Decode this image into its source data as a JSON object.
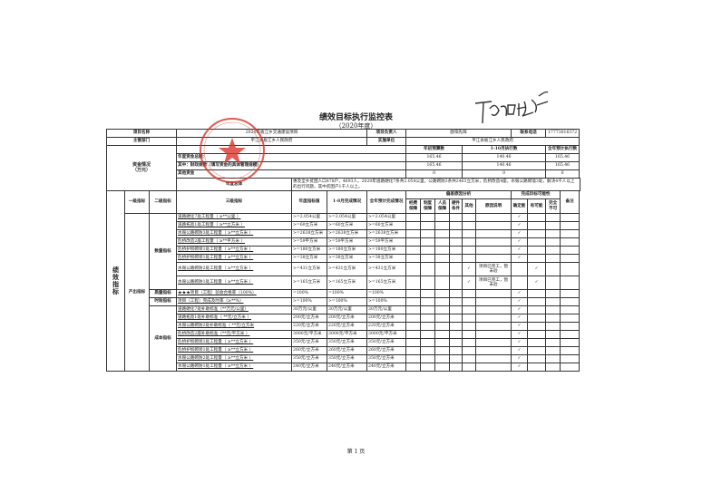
{
  "title": "绩效目标执行监控表",
  "subtitle": "（2020年度）",
  "footer": "第 1 页",
  "header": {
    "project_name_label": "项目名称",
    "project_name": "2020年板江乡交通建设项目",
    "leader_label": "项目负责人",
    "leader": "欧阳先辉",
    "phone_label": "联系电话",
    "phone": "17773016372",
    "dept_label": "主管部门",
    "dept": "平江县板江乡人民政府",
    "impl_label": "实施单位",
    "impl": "平江县板江乡人民政府"
  },
  "funds": {
    "label": "资金情况\n（万元）",
    "col_budget": "年初预算数",
    "col_exec": "1-10月执行数",
    "col_forecast": "全年预计执行数",
    "rows": [
      {
        "label": "年度资金总额：",
        "budget": "165.46",
        "exec": "140.46",
        "forecast": "165.46"
      },
      {
        "label": "其中：财政拨款（填写资金的具体管理规模）",
        "budget": "165.46",
        "exec": "140.46",
        "forecast": "165.46"
      },
      {
        "label": "其他资金",
        "budget": "0",
        "exec": "0",
        "forecast": "0"
      }
    ]
  },
  "overall": {
    "label": "年度总体",
    "text": "惠及全乡贫困人口878户，4693人。2020年道路硬化7条共2.054公里，公路砌防3条共2463立方米，危桥改造4座，水毁公路砌墙3处，解决4千人以上的出行问题，其中贫困户1千人以上。"
  },
  "indicators": {
    "section_label": "绩效指标",
    "headers": {
      "l1": "一级指标",
      "l2": "二级指标",
      "l3": "三级指标",
      "target": "年度指标值",
      "done": "1-8月完成情况",
      "forecast": "全年预计完成情况",
      "deviation": "偏差原因分析",
      "dev_cols": [
        "经费保障",
        "制度保障",
        "人员保障",
        "硬件条件",
        "其他",
        "原因说明"
      ],
      "possibility": "完成目标可能性",
      "pos_cols": [
        "确定能",
        "有可能",
        "完全不可"
      ],
      "note": "备注"
    },
    "l1_label": "产出指标",
    "check": "✓",
    "groups": [
      {
        "label": "数量指标",
        "rows": [
          {
            "name": "道路硬化7处工程量（ ≥**公里 ）",
            "target": ">=2.054公里",
            "done": ">=2.054公里",
            "forecast": ">=2.054公里",
            "other": "",
            "reason": "",
            "pos": 0
          },
          {
            "name": "道路拓宽1处工程量（ ≥**立方米 ）",
            "target": ">=60立方米",
            "done": ">=60立方米",
            "forecast": ">=60立方米",
            "other": "",
            "reason": "",
            "pos": 0
          },
          {
            "name": "水毁公路砌防3处工程量（ ≥**立方米 ）",
            "target": ">=2638立方米",
            "done": ">=2638立方米",
            "forecast": ">=2638立方米",
            "other": "",
            "reason": "",
            "pos": 0
          },
          {
            "name": "危桥改造2座工程量（ ≥**平方米 ）",
            "target": ">=59平方米",
            "done": ">=59平方米",
            "forecast": ">=59平方米",
            "other": "",
            "reason": "",
            "pos": 0
          },
          {
            "name": "危桥护坝砌坝1处工程量（ ≥**立方米 ）",
            "target": ">=180立方米",
            "done": ">=180立方米",
            "forecast": ">=180立方米",
            "other": "",
            "reason": "",
            "pos": 0
          },
          {
            "name": "危桥护坝砌坝1处工程量（ ≥**立方米 ）",
            "target": ">=38立方米",
            "done": ">=38立方米",
            "forecast": ">=38立方米",
            "other": "",
            "reason": "",
            "pos": 0
          },
          {
            "name": "水毁公路砌防2处工程量（ ≥**立方米 ）",
            "target": ">=431立方米",
            "done": ">=431立方米",
            "forecast": ">=431立方米",
            "other": "✓",
            "reason": "项目已完工，暂未验",
            "pos": 1
          },
          {
            "name": "水毁公路砌防1处工程量（ ≥**立方米 ）",
            "target": ">=165立方米",
            "done": ">=165立方米",
            "forecast": ">=165立方米",
            "other": "✓",
            "reason": "项目已完工，暂未验",
            "pos": 1
          }
        ]
      },
      {
        "label": "质量指标",
        "rows": [
          {
            "name": "★★★项目（工程）验收合格率（100%）",
            "target": "=100%",
            "done": "=100%",
            "forecast": "=100%",
            "other": "",
            "reason": "",
            "pos": 0
          }
        ]
      },
      {
        "label": "时效指标",
        "rows": [
          {
            "name": "项目（工程）完成及时率（≥**%）",
            "target": ">=100%",
            "done": ">=100%",
            "forecast": ">=100%",
            "other": "",
            "reason": "",
            "pos": 0
          }
        ]
      },
      {
        "label": "成本指标",
        "rows": [
          {
            "name": "道路硬化7处补助标准（**万元/公里）",
            "target": "30万元/公里",
            "done": "30万元/公里",
            "forecast": "30万元/公里",
            "other": "",
            "reason": "",
            "pos": 0
          },
          {
            "name": "道路拓宽1处补助标准（ **元/立方米 ）",
            "target": "200元/立方米",
            "done": "200元/立方米",
            "forecast": "200元/立方米",
            "other": "",
            "reason": "",
            "pos": 0
          },
          {
            "name": "水毁公路砌防2处补助标准（ **元/立方米",
            "target": "220元/立方米",
            "done": "220元/立方米",
            "forecast": "220元/立方米",
            "other": "",
            "reason": "",
            "pos": 0
          },
          {
            "name": "危桥改造2座补助标准（**元/平方米 ）",
            "target": "3000元/平方米",
            "done": "3000元/平方米",
            "forecast": "3000元/平方米",
            "other": "",
            "reason": "",
            "pos": 0
          },
          {
            "name": "危桥护坝砌坝1处工程量（ ≥**立方米 ）",
            "target": "350元/立方米",
            "done": "350元/立方米",
            "forecast": "350元/立方米",
            "other": "",
            "reason": "",
            "pos": 0
          },
          {
            "name": "危桥护坝砌坝1处工程量（ ≥**立方米 ）",
            "target": "260元/立方米",
            "done": "260元/立方米",
            "forecast": "260元/立方米",
            "other": "",
            "reason": "",
            "pos": 0
          },
          {
            "name": "水毁公路砌防2处工程量（ ≥**立方米 ）",
            "target": "350元/立方米",
            "done": "350元/立方米",
            "forecast": "350元/立方米",
            "other": "",
            "reason": "",
            "pos": 0
          },
          {
            "name": "水毁公路砌防1处工程量（ ≥**立方米 ）",
            "target": "240元/立方米",
            "done": "240元/立方米",
            "forecast": "240元/立方米",
            "other": "",
            "reason": "",
            "pos": 0
          }
        ]
      }
    ]
  },
  "colors": {
    "seal": "#d9342b",
    "ink": "#222222"
  }
}
